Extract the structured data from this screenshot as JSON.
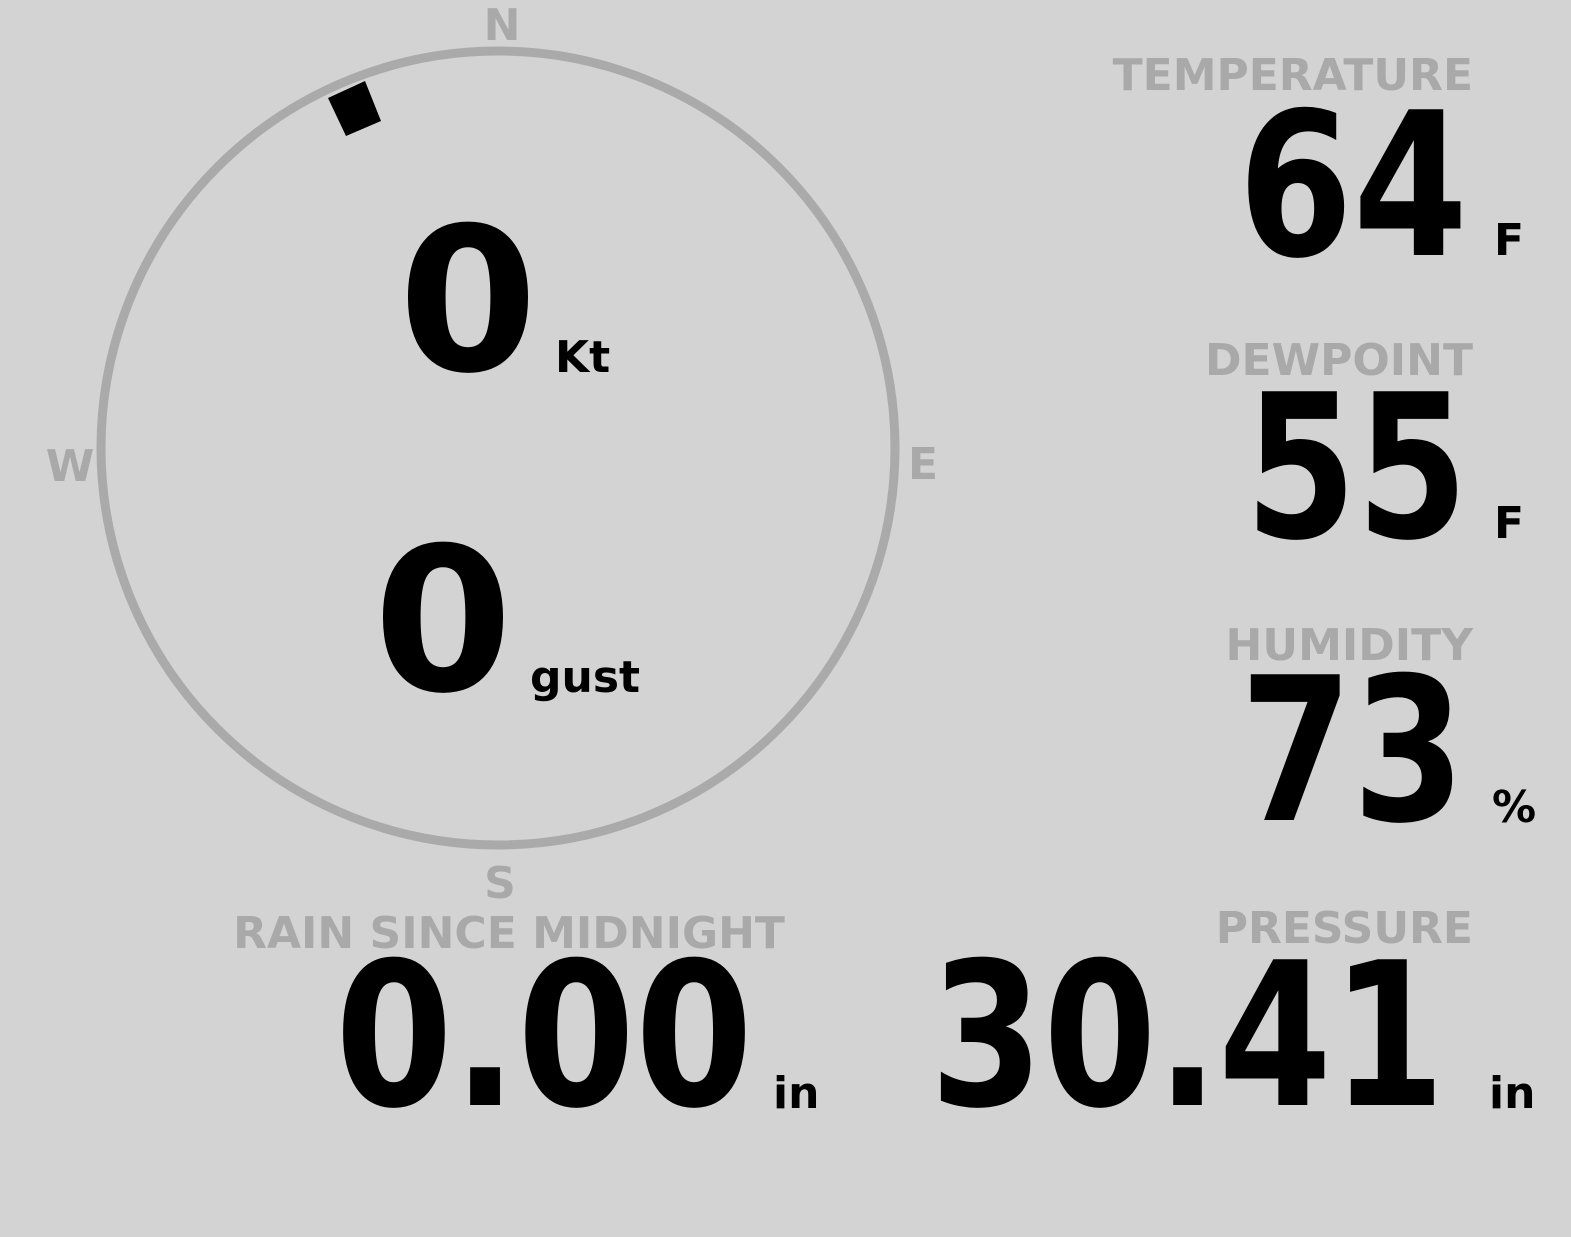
{
  "compass": {
    "north": "N",
    "south": "S",
    "east": "E",
    "west": "W"
  },
  "wind": {
    "speed": "0",
    "speed_unit": "Kt",
    "gust": "0",
    "gust_unit": "gust"
  },
  "temperature": {
    "label": "TEMPERATURE",
    "value": "64",
    "unit": "F"
  },
  "dewpoint": {
    "label": "DEWPOINT",
    "value": "55",
    "unit": "F"
  },
  "humidity": {
    "label": "HUMIDITY",
    "value": "73",
    "unit": "%"
  },
  "rain": {
    "label": "RAIN SINCE MIDNIGHT",
    "value": "0.00",
    "unit": "in"
  },
  "pressure": {
    "label": "PRESSURE",
    "value": "30.41",
    "unit": "in"
  }
}
